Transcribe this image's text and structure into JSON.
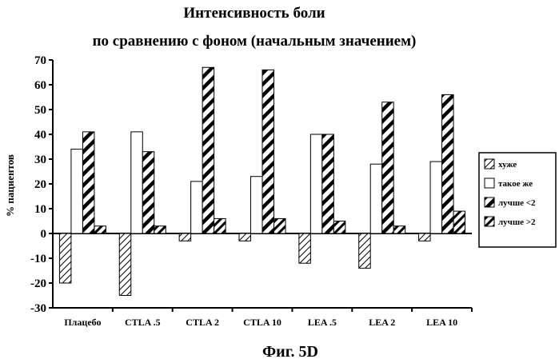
{
  "chart_data": {
    "type": "bar",
    "title": [
      "Интенсивность боли",
      "по сравнению с фоном (начальным значением)"
    ],
    "ylabel": "% пациентов",
    "xlabel": "",
    "categories": [
      "Плацебо",
      "CTLA .5",
      "CTLA 2",
      "CTLA 10",
      "LEA .5",
      "LEA 2",
      "LEA 10"
    ],
    "ylim": [
      -30,
      70
    ],
    "yticks": [
      -30,
      -20,
      -10,
      0,
      10,
      20,
      30,
      40,
      50,
      60,
      70
    ],
    "grid": false,
    "legend_position": "right",
    "series": [
      {
        "name": "хуже",
        "pattern": "sparse-diagonal",
        "values": [
          -20,
          -25,
          -3,
          -3,
          -12,
          -14,
          -3
        ]
      },
      {
        "name": "такое же",
        "pattern": "blank",
        "values": [
          34,
          41,
          21,
          23,
          40,
          28,
          29
        ]
      },
      {
        "name": "лучше <2",
        "pattern": "bold-diagonal",
        "values": [
          41,
          33,
          67,
          66,
          40,
          53,
          56
        ]
      },
      {
        "name": "лучше >2",
        "pattern": "hatched-bold",
        "values": [
          3,
          3,
          6,
          6,
          5,
          3,
          9
        ]
      }
    ]
  },
  "caption": "Фиг. 5D"
}
